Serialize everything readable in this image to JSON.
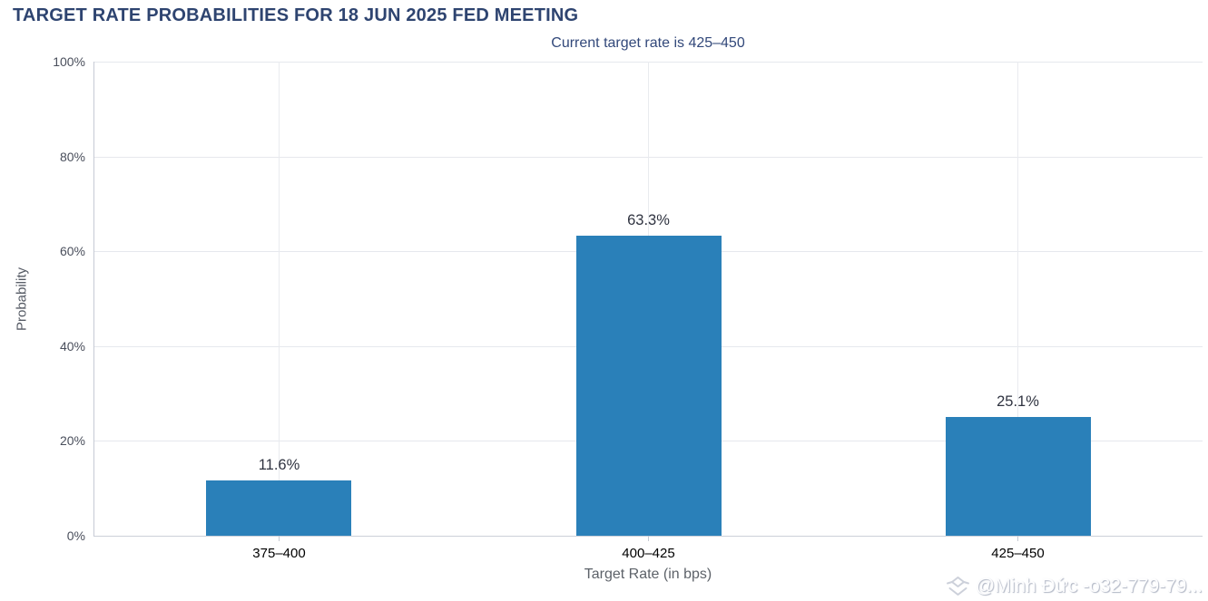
{
  "chart_data": {
    "type": "bar",
    "title": "TARGET RATE PROBABILITIES FOR 18 JUN 2025 FED MEETING",
    "subtitle": "Current target rate is 425–450",
    "categories": [
      "375–400",
      "400–425",
      "425–450"
    ],
    "values": [
      11.6,
      63.3,
      25.1
    ],
    "data_labels": [
      "11.6%",
      "63.3%",
      "25.1%"
    ],
    "xlabel": "Target Rate (in bps)",
    "ylabel": "Probability",
    "ylim": [
      0,
      100
    ],
    "yticks": [
      0,
      20,
      40,
      60,
      80,
      100
    ],
    "ytick_labels": [
      "0%",
      "20%",
      "40%",
      "60%",
      "80%",
      "100%"
    ],
    "grid": true,
    "legend": "none",
    "bar_color": "#2a80b9"
  },
  "colors": {
    "title": "#2e4470",
    "subtitle": "#32487a",
    "bar": "#2a80b9",
    "gridline": "#e6e8ed",
    "axis_line": "#c6cad4",
    "data_label": "#2f3340",
    "watermark_icon": "#ccd0da"
  },
  "watermark": {
    "icon": "diamond-layers-icon",
    "text": "@Minh Đức -o32-779-79..."
  }
}
